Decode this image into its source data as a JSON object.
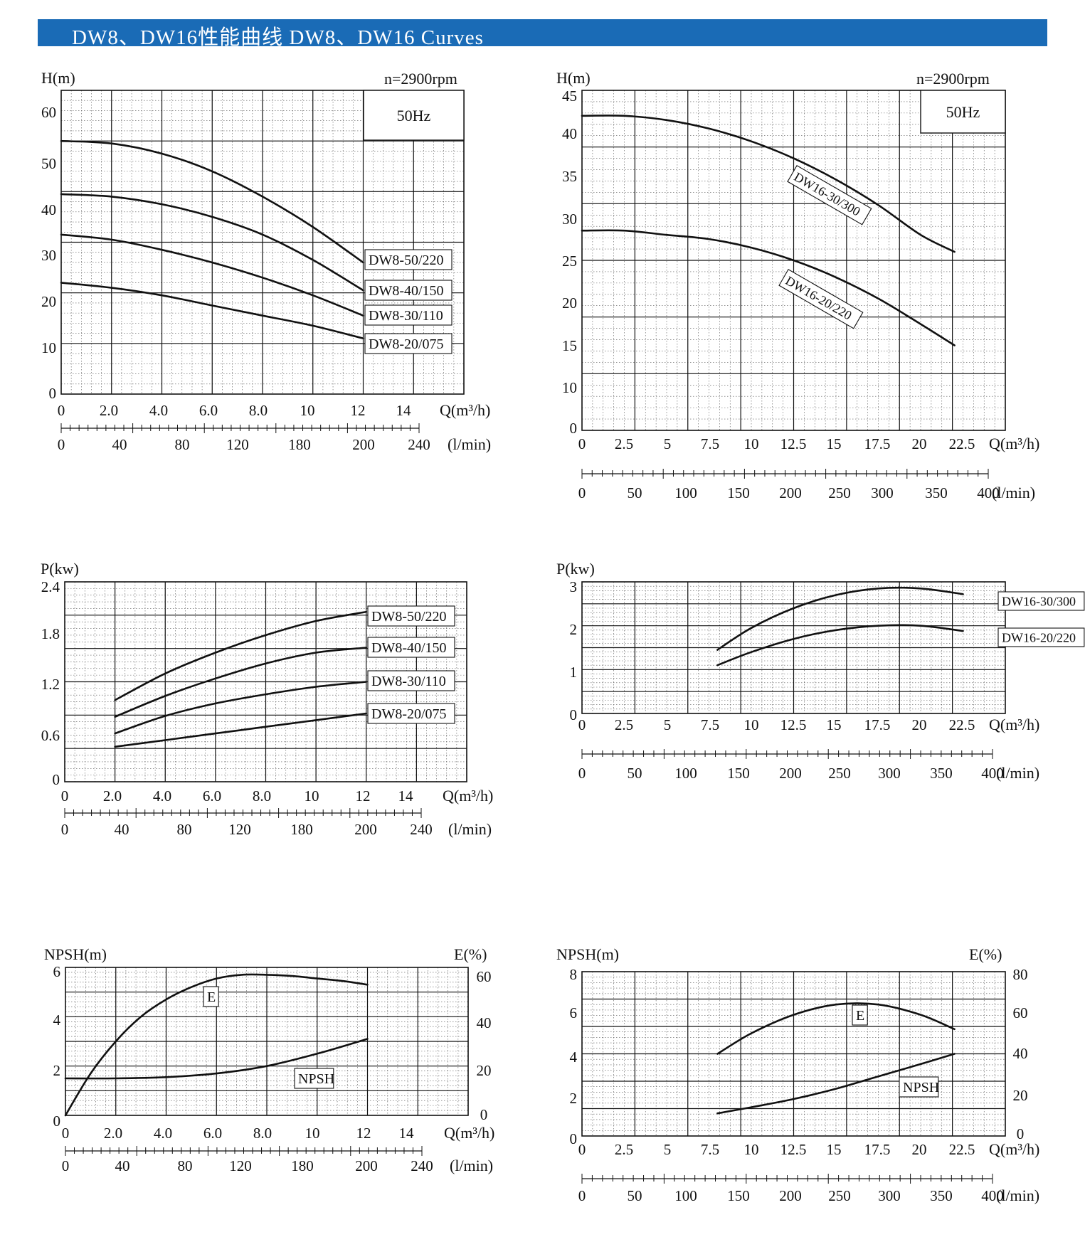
{
  "header": {
    "title": "DW8、DW16性能曲线  DW8、DW16 Curves"
  },
  "colors": {
    "header_bg": "#1a6bb6",
    "curve": "#111111",
    "grid_major": "#111111",
    "grid_minor": "#555555"
  },
  "chart_data": [
    {
      "id": "dw8-head",
      "type": "line",
      "ylabel": "H(m)",
      "xlabel": "Q(m³/h)",
      "x2label": "(l/min)",
      "note": "n=2900rpm",
      "freq": "50Hz",
      "xlim": [
        0,
        16
      ],
      "ylim": [
        0,
        60
      ],
      "xticks": [
        "0",
        "2.0",
        "4.0",
        "6.0",
        "8.0",
        "10",
        "12",
        "14"
      ],
      "yticks": [
        "0",
        "10",
        "20",
        "30",
        "40",
        "50",
        "60"
      ],
      "x2ticks": [
        "0",
        "40",
        "80",
        "120",
        "180",
        "200",
        "240"
      ],
      "series": [
        {
          "name": "DW8-50/220",
          "x": [
            0,
            2,
            4,
            6,
            8,
            10,
            12
          ],
          "y": [
            50,
            49.5,
            47.5,
            44,
            39,
            33,
            26
          ]
        },
        {
          "name": "DW8-40/150",
          "x": [
            0,
            2,
            4,
            6,
            8,
            10,
            12
          ],
          "y": [
            39.5,
            39,
            37.5,
            35,
            31.5,
            26.5,
            20.5
          ]
        },
        {
          "name": "DW8-30/110",
          "x": [
            0,
            2,
            4,
            6,
            8,
            10,
            12
          ],
          "y": [
            31.5,
            30.5,
            28.5,
            26,
            23,
            19.5,
            15.5
          ]
        },
        {
          "name": "DW8-20/075",
          "x": [
            0,
            2,
            4,
            6,
            8,
            10,
            12
          ],
          "y": [
            22,
            21,
            19.5,
            17.5,
            15.5,
            13.5,
            11
          ]
        }
      ]
    },
    {
      "id": "dw16-head",
      "type": "line",
      "ylabel": "H(m)",
      "xlabel": "Q(m³/h)",
      "x2label": "(l/min)",
      "note": "n=2900rpm",
      "freq": "50Hz",
      "xlim": [
        0,
        25
      ],
      "ylim": [
        5,
        45
      ],
      "xticks": [
        "0",
        "2.5",
        "5",
        "7.5",
        "10",
        "12.5",
        "15",
        "17.5",
        "20",
        "22.5"
      ],
      "yticks": [
        "0",
        "10",
        "15",
        "20",
        "25",
        "30",
        "35",
        "40",
        "45"
      ],
      "x2ticks": [
        "0",
        "50",
        "100",
        "150",
        "200",
        "250",
        "300",
        "350",
        "400"
      ],
      "series": [
        {
          "name": "DW16-30/300",
          "x": [
            0,
            2.5,
            5,
            7.5,
            10,
            12.5,
            15,
            17.5,
            20,
            22
          ],
          "y": [
            42,
            42,
            41.5,
            40.5,
            39,
            37,
            34.5,
            31.5,
            28,
            26
          ]
        },
        {
          "name": "DW16-20/220",
          "x": [
            0,
            2.5,
            5,
            7.5,
            10,
            12.5,
            15,
            17.5,
            20,
            22
          ],
          "y": [
            28.5,
            28.5,
            28,
            27.5,
            26.5,
            25,
            23,
            20.5,
            17.5,
            15
          ]
        }
      ]
    },
    {
      "id": "dw8-power",
      "type": "line",
      "ylabel": "P(kw)",
      "xlabel": "Q(m³/h)",
      "x2label": "(l/min)",
      "xlim": [
        0,
        16
      ],
      "ylim": [
        0,
        2.4
      ],
      "xticks": [
        "0",
        "2.0",
        "4.0",
        "6.0",
        "8.0",
        "10",
        "12",
        "14"
      ],
      "yticks": [
        "0",
        "0.6",
        "1.2",
        "1.8",
        "2.4"
      ],
      "x2ticks": [
        "0",
        "40",
        "80",
        "120",
        "180",
        "200",
        "240"
      ],
      "series": [
        {
          "name": "DW8-50/220",
          "x": [
            2,
            4,
            6,
            8,
            10,
            12
          ],
          "y": [
            0.98,
            1.3,
            1.55,
            1.76,
            1.93,
            2.04
          ]
        },
        {
          "name": "DW8-40/150",
          "x": [
            2,
            4,
            6,
            8,
            10,
            12
          ],
          "y": [
            0.78,
            1.03,
            1.24,
            1.42,
            1.55,
            1.61
          ]
        },
        {
          "name": "DW8-30/110",
          "x": [
            2,
            4,
            6,
            8,
            10,
            12
          ],
          "y": [
            0.58,
            0.79,
            0.94,
            1.05,
            1.14,
            1.2
          ]
        },
        {
          "name": "DW8-20/075",
          "x": [
            2,
            4,
            6,
            8,
            10,
            12
          ],
          "y": [
            0.42,
            0.5,
            0.58,
            0.66,
            0.74,
            0.82
          ]
        }
      ]
    },
    {
      "id": "dw16-power",
      "type": "line",
      "ylabel": "P(kw)",
      "xlabel": "Q(m³/h)",
      "x2label": "(l/min)",
      "xlim": [
        0,
        25
      ],
      "ylim": [
        0,
        3
      ],
      "xticks": [
        "0",
        "2.5",
        "5",
        "7.5",
        "10",
        "12.5",
        "15",
        "17.5",
        "20",
        "22.5"
      ],
      "yticks": [
        "0",
        "1",
        "2",
        "3"
      ],
      "x2ticks": [
        "0",
        "50",
        "100",
        "150",
        "200",
        "250",
        "300",
        "350",
        "400"
      ],
      "series": [
        {
          "name": "DW16-30/300",
          "x": [
            8,
            10,
            12.5,
            15,
            17.5,
            20,
            22.5
          ],
          "y": [
            1.45,
            1.95,
            2.4,
            2.7,
            2.85,
            2.85,
            2.72
          ]
        },
        {
          "name": "DW16-20/220",
          "x": [
            8,
            10,
            12.5,
            15,
            17.5,
            20,
            22.5
          ],
          "y": [
            1.1,
            1.4,
            1.7,
            1.9,
            2.0,
            2.0,
            1.88
          ]
        }
      ]
    },
    {
      "id": "dw8-npsh",
      "type": "line",
      "ylabel": "NPSH(m)",
      "y2label": "E(%)",
      "xlabel": "Q(m³/h)",
      "x2label": "(l/min)",
      "xlim": [
        0,
        16
      ],
      "ylim": [
        0,
        6
      ],
      "y2lim": [
        0,
        60
      ],
      "xticks": [
        "0",
        "2.0",
        "4.0",
        "6.0",
        "8.0",
        "10",
        "12",
        "14"
      ],
      "yticks": [
        "0",
        "2",
        "4",
        "6"
      ],
      "y2ticks": [
        "0",
        "20",
        "40",
        "60"
      ],
      "x2ticks": [
        "0",
        "40",
        "80",
        "120",
        "180",
        "200",
        "240"
      ],
      "series": [
        {
          "name": "E",
          "axis": "right",
          "x": [
            0,
            1,
            2,
            3,
            4,
            5,
            6,
            7,
            8,
            9,
            10,
            11,
            12
          ],
          "y": [
            0,
            17,
            30,
            40,
            47,
            52,
            55.5,
            57,
            57,
            56.5,
            55.5,
            54.5,
            53
          ]
        },
        {
          "name": "NPSH",
          "axis": "left",
          "x": [
            0,
            2,
            4,
            6,
            8,
            10,
            12
          ],
          "y": [
            1.5,
            1.5,
            1.55,
            1.7,
            2.0,
            2.5,
            3.1
          ]
        }
      ]
    },
    {
      "id": "dw16-npsh",
      "type": "line",
      "ylabel": "NPSH(m)",
      "y2label": "E(%)",
      "xlabel": "Q(m³/h)",
      "x2label": "(l/min)",
      "xlim": [
        0,
        25
      ],
      "ylim": [
        0,
        8
      ],
      "y2lim": [
        0,
        80
      ],
      "xticks": [
        "0",
        "2.5",
        "5",
        "7.5",
        "10",
        "12.5",
        "15",
        "17.5",
        "20",
        "22.5"
      ],
      "yticks": [
        "0",
        "2",
        "4",
        "6",
        "8"
      ],
      "y2ticks": [
        "0",
        "20",
        "40",
        "60",
        "80"
      ],
      "x2ticks": [
        "0",
        "50",
        "100",
        "150",
        "200",
        "250",
        "300",
        "350",
        "400"
      ],
      "series": [
        {
          "name": "E",
          "axis": "right",
          "x": [
            8,
            10,
            12.5,
            15,
            17.5,
            20,
            22
          ],
          "y": [
            40,
            50,
            59,
            64,
            64,
            59,
            52
          ]
        },
        {
          "name": "NPSH",
          "axis": "left",
          "x": [
            8,
            10,
            12.5,
            15,
            17.5,
            20,
            22
          ],
          "y": [
            1.1,
            1.4,
            1.8,
            2.3,
            2.9,
            3.5,
            4.0
          ]
        }
      ]
    }
  ]
}
